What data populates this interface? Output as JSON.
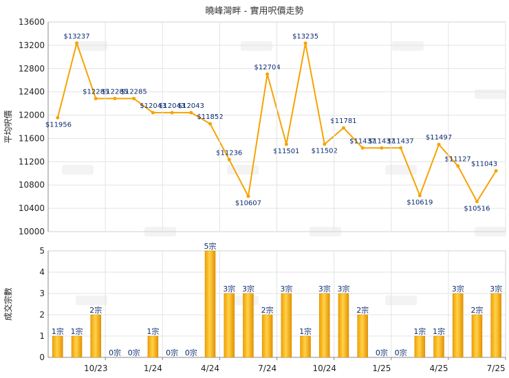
{
  "chart_data": [
    {
      "type": "line",
      "title": "曉峰灣畔 - 實用呎價走勢",
      "ylabel": "平均呎價",
      "ylim": [
        10000,
        13600
      ],
      "yticks": [
        10000,
        10400,
        10800,
        11200,
        11600,
        12000,
        12400,
        12800,
        13200,
        13600
      ],
      "grid": true,
      "color": "#f5a300",
      "series": [
        {
          "values": [
            11956,
            13237,
            12285,
            12285,
            12285,
            12043,
            12043,
            12043,
            11852,
            11236,
            10607,
            12704,
            11501,
            13235,
            11502,
            11781,
            11437,
            11437,
            11437,
            10619,
            11497,
            11127,
            10516,
            11043
          ],
          "labels": [
            "$11956",
            "$13237",
            "$12285",
            "$12285",
            "$12285",
            "$12043",
            "$12043",
            "$12043",
            "$11852",
            "$11236",
            "$10607",
            "$12704",
            "$11501",
            "$13235",
            "$11502",
            "$11781",
            "$11437",
            "$11437",
            "$11437",
            "$10619",
            "$11497",
            "$11127",
            "$10516",
            "$11043"
          ]
        }
      ]
    },
    {
      "type": "bar",
      "ylabel": "成交宗數",
      "ylim": [
        0,
        5
      ],
      "yticks": [
        0,
        1,
        2,
        3,
        4,
        5
      ],
      "grid": true,
      "color": "#f5a300",
      "x_tick_labels": [
        "10/23",
        "1/24",
        "4/24",
        "7/24",
        "10/24",
        "1/25",
        "4/25",
        "7/25"
      ],
      "values": [
        1,
        1,
        2,
        0,
        0,
        1,
        0,
        0,
        5,
        3,
        3,
        2,
        3,
        1,
        3,
        3,
        2,
        0,
        0,
        1,
        1,
        3,
        2,
        3
      ],
      "labels": [
        "1宗",
        "1宗",
        "2宗",
        "0宗",
        "0宗",
        "1宗",
        "0宗",
        "0宗",
        "5宗",
        "3宗",
        "3宗",
        "2宗",
        "3宗",
        "1宗",
        "3宗",
        "3宗",
        "2宗",
        "0宗",
        "0宗",
        "1宗",
        "1宗",
        "3宗",
        "2宗",
        "3宗"
      ]
    }
  ]
}
